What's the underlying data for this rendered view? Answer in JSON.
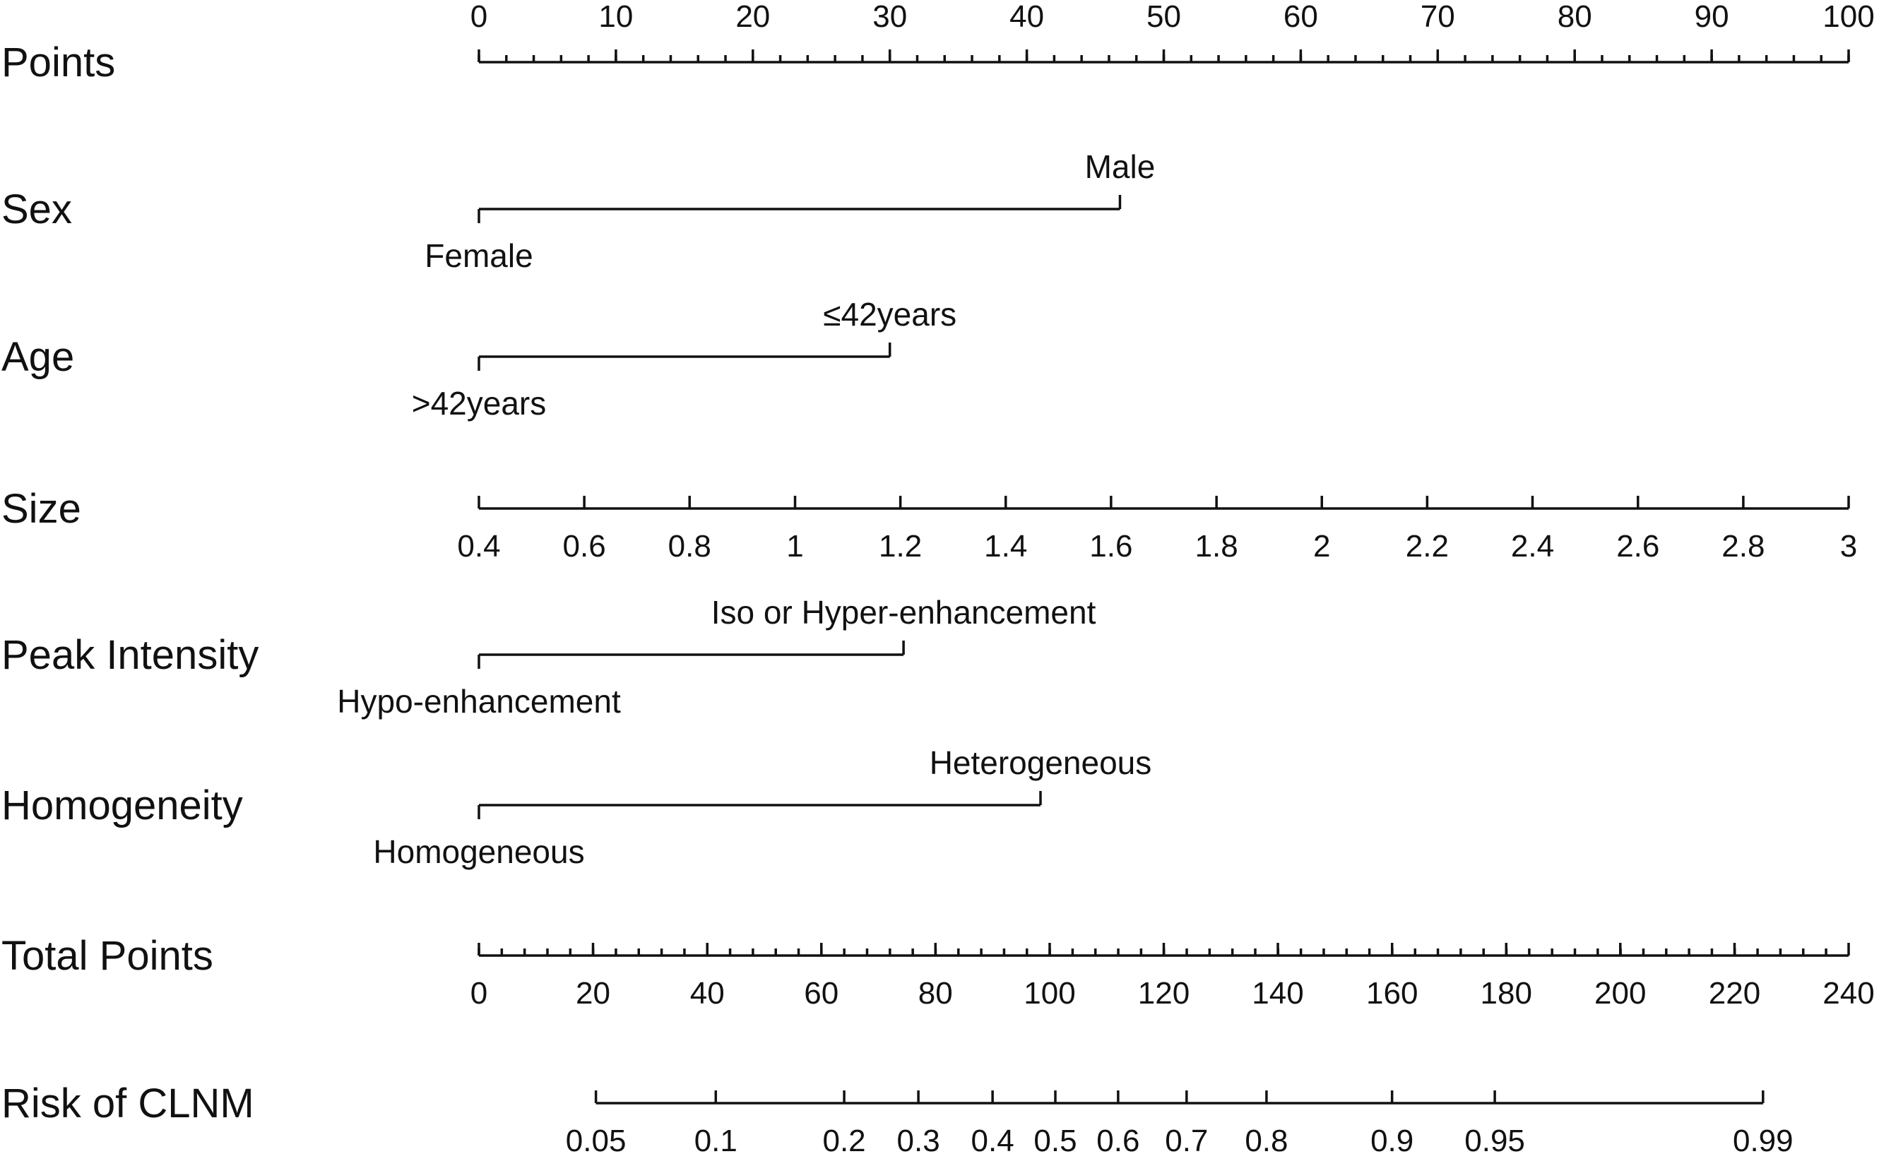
{
  "chart_data": {
    "type": "nomogram",
    "rows": [
      {
        "id": "points",
        "label": "Points",
        "kind": "scale",
        "ticks": [
          "0",
          "10",
          "20",
          "30",
          "40",
          "50",
          "60",
          "70",
          "80",
          "90",
          "100"
        ],
        "tick_points": [
          0,
          10,
          20,
          30,
          40,
          50,
          60,
          70,
          80,
          90,
          100
        ],
        "minor_step": 2,
        "labels_position": "above"
      },
      {
        "id": "sex",
        "label": "Sex",
        "kind": "categorical",
        "categories": [
          {
            "label": "Female",
            "points": 0
          },
          {
            "label": "Male",
            "points": 46.8
          }
        ]
      },
      {
        "id": "age",
        "label": "Age",
        "kind": "categorical",
        "categories": [
          {
            "label": ">42years",
            "points": 0
          },
          {
            "label": "≤42years",
            "points": 30
          }
        ]
      },
      {
        "id": "size",
        "label": "Size",
        "kind": "scale",
        "ticks": [
          "0.4",
          "0.6",
          "0.8",
          "1",
          "1.2",
          "1.4",
          "1.6",
          "1.8",
          "2",
          "2.2",
          "2.4",
          "2.6",
          "2.8",
          "3"
        ],
        "tick_points": [
          0,
          7.69,
          15.38,
          23.08,
          30.77,
          38.46,
          46.15,
          53.85,
          61.54,
          69.23,
          76.92,
          84.62,
          92.31,
          100
        ],
        "labels_position": "below"
      },
      {
        "id": "peak_intensity",
        "label": "Peak Intensity",
        "kind": "categorical",
        "categories": [
          {
            "label": "Hypo-enhancement",
            "points": 0
          },
          {
            "label": "Iso or Hyper-enhancement",
            "points": 31
          }
        ]
      },
      {
        "id": "homogeneity",
        "label": "Homogeneity",
        "kind": "categorical",
        "categories": [
          {
            "label": "Homogeneous",
            "points": 0
          },
          {
            "label": "Heterogeneous",
            "points": 41
          }
        ]
      },
      {
        "id": "total_points",
        "label": "Total Points",
        "kind": "scale",
        "ticks": [
          "0",
          "20",
          "40",
          "60",
          "80",
          "100",
          "120",
          "140",
          "160",
          "180",
          "200",
          "220",
          "240"
        ],
        "tick_points": [
          0,
          8.33,
          16.67,
          25,
          33.33,
          41.67,
          50,
          58.33,
          66.67,
          75,
          83.33,
          91.67,
          100
        ],
        "minor_step": 1.667,
        "labels_position": "below"
      },
      {
        "id": "risk",
        "label": "Risk of CLNM",
        "kind": "scale",
        "ticks": [
          "0.05",
          "0.1",
          "0.2",
          "0.3",
          "0.4",
          "0.5",
          "0.6",
          "0.7",
          "0.8",
          "0.9",
          "0.95",
          "0.99"
        ],
        "tick_total_points": [
          20.5,
          41.5,
          64,
          77,
          90,
          101,
          112,
          124,
          138,
          160,
          178,
          225
        ],
        "labels_position": "below"
      }
    ]
  }
}
